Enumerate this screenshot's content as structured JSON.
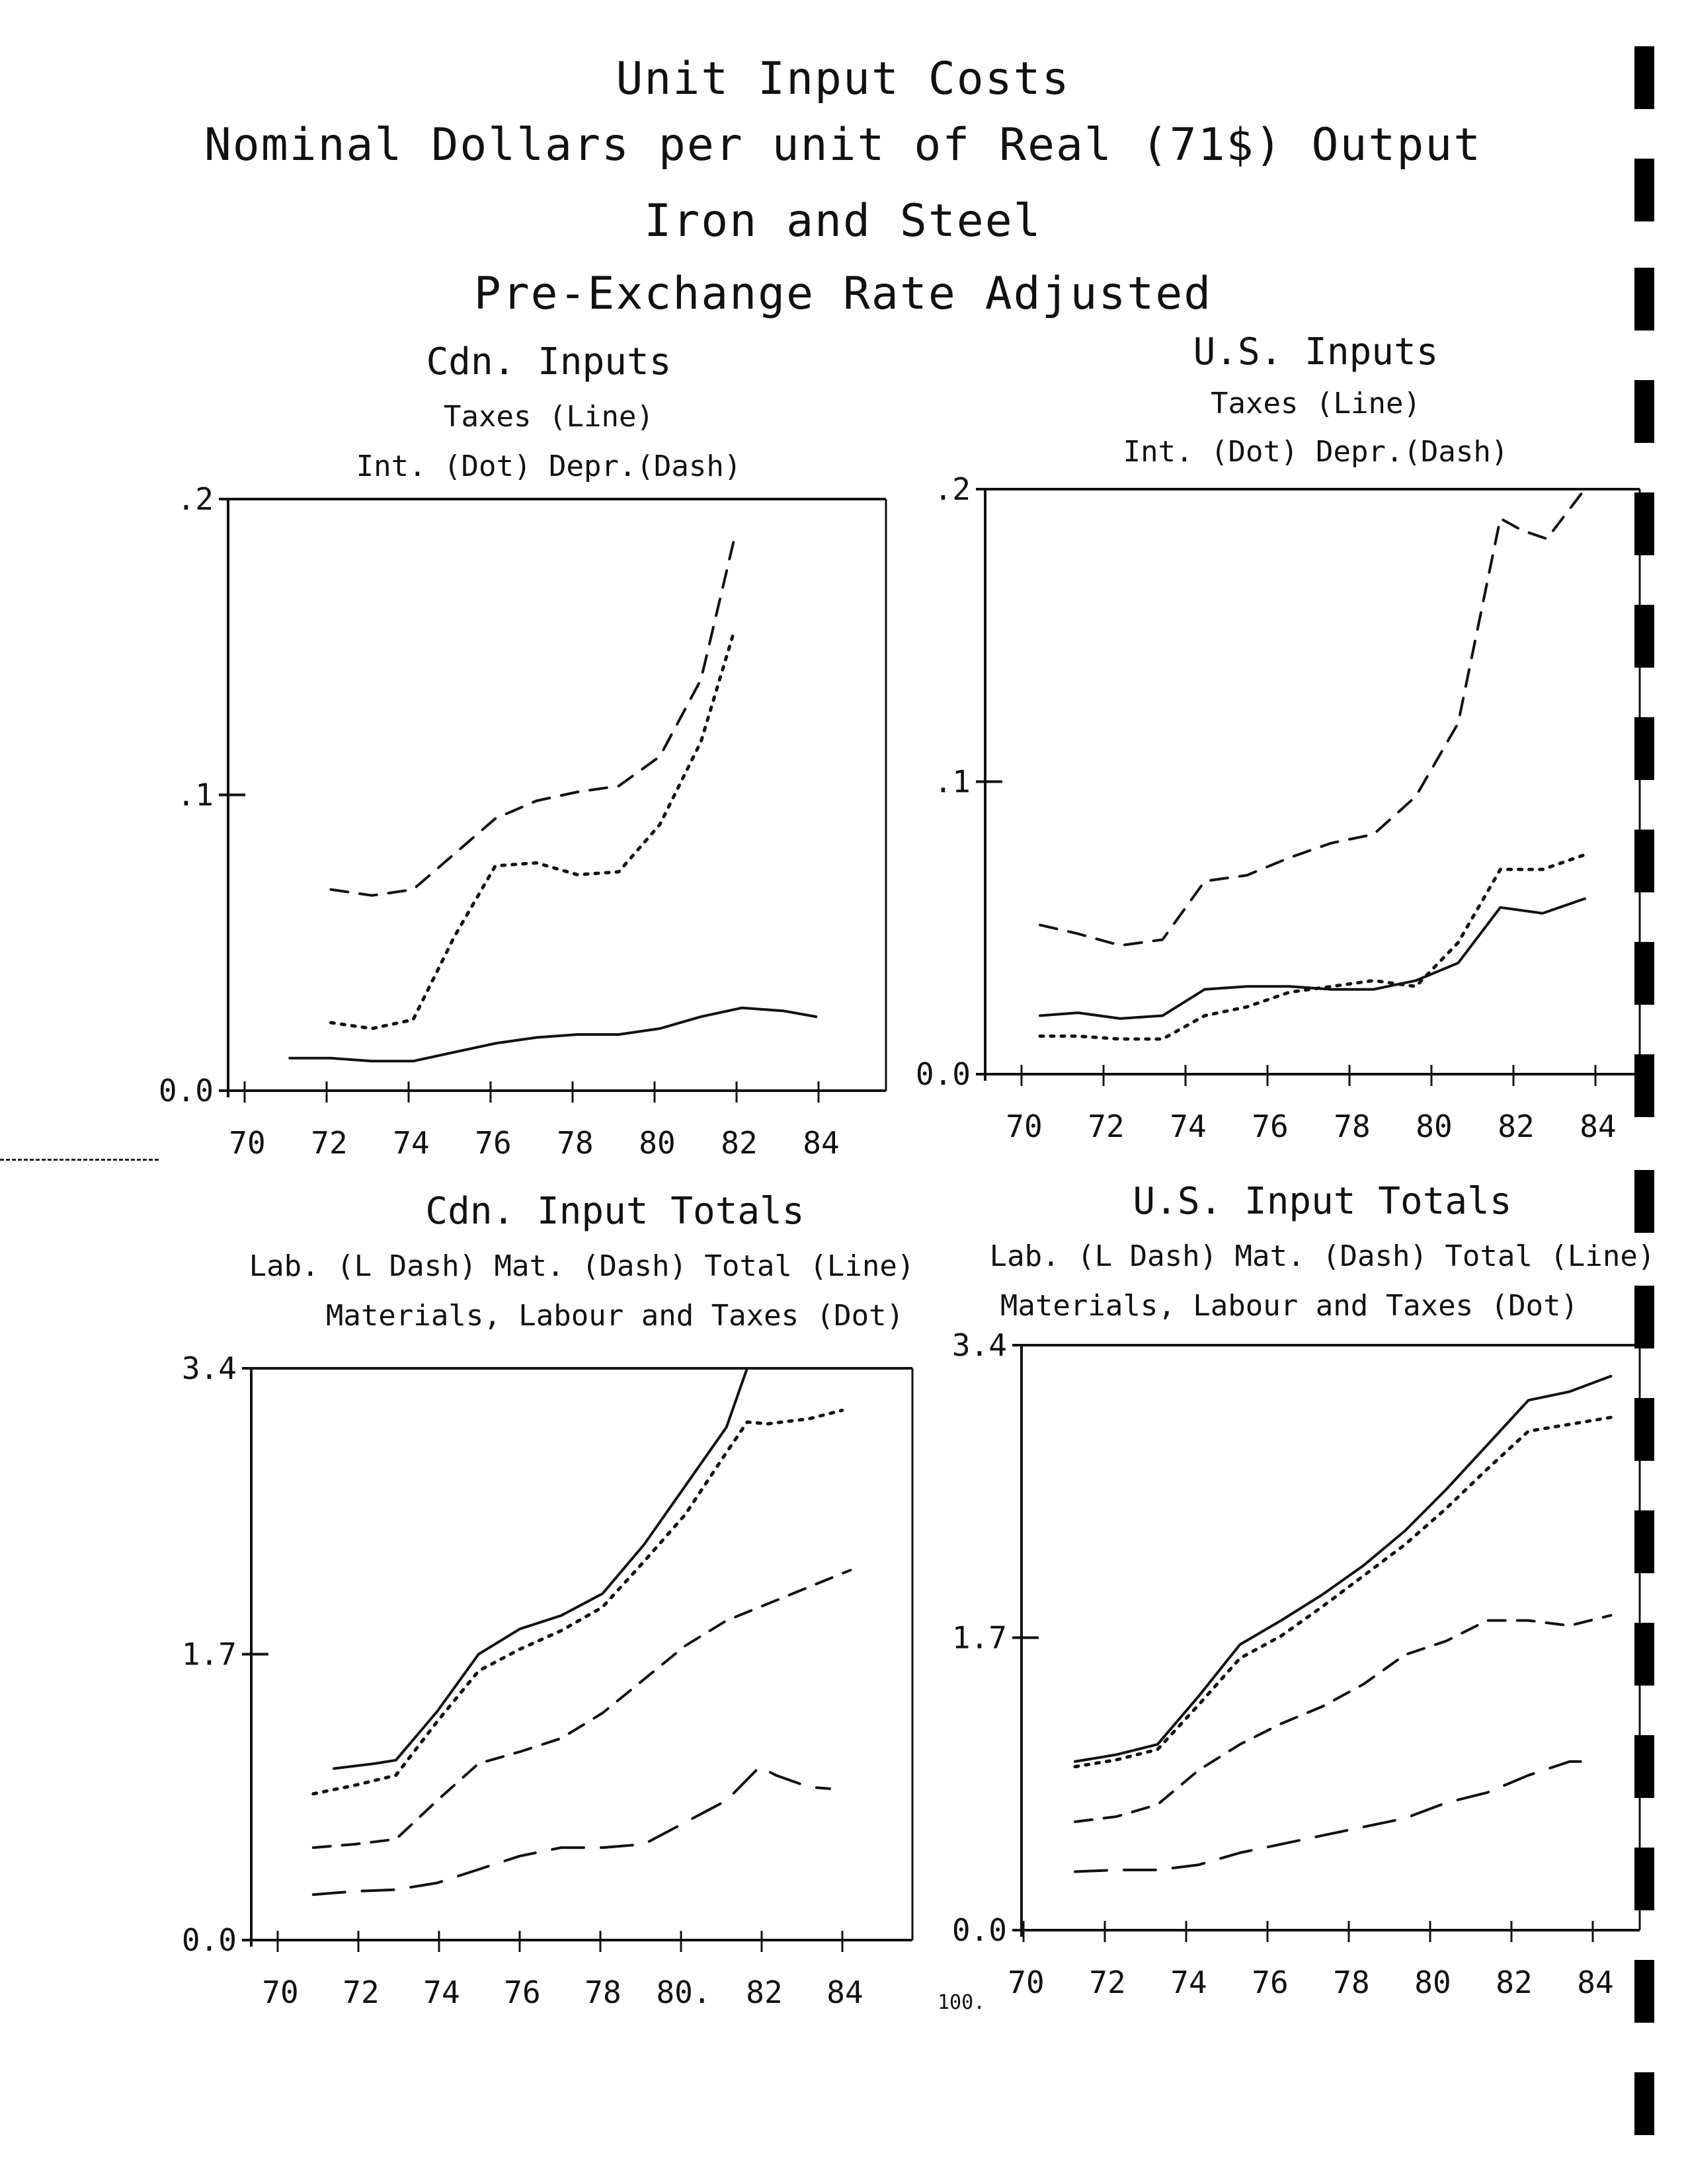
{
  "heading": {
    "line1": "Unit Input Costs",
    "line2": "Nominal Dollars per unit of Real (71$) Output",
    "line3": "Iron and Steel",
    "line4": "Pre-Exchange Rate Adjusted"
  },
  "page_number": "100.",
  "colors": {
    "ink": "#111111",
    "background": "#ffffff"
  },
  "chart_data": [
    {
      "type": "line",
      "title": "Cdn. Inputs",
      "legend_lines": [
        "Taxes (Line)",
        "Int. (Dot)      Depr.(Dash)"
      ],
      "x_ticks": [
        "70",
        "72",
        "74",
        "76",
        "78",
        "80",
        "82",
        "84"
      ],
      "y_ticks": [
        "0.0",
        ".1",
        ".2"
      ],
      "xlim": [
        70,
        86
      ],
      "ylim": [
        0,
        0.2
      ],
      "series": [
        {
          "name": "Taxes",
          "style": "solid",
          "x": [
            71.5,
            72.5,
            73.5,
            74.5,
            75.5,
            76.5,
            77.5,
            78.5,
            79.5,
            80.5,
            81.5,
            82.5,
            83.5,
            84.3
          ],
          "y": [
            0.011,
            0.011,
            0.01,
            0.01,
            0.013,
            0.016,
            0.018,
            0.019,
            0.019,
            0.021,
            0.025,
            0.028,
            0.027,
            0.025
          ]
        },
        {
          "name": "Int.",
          "style": "dot",
          "x": [
            72.5,
            73.5,
            74.5,
            75.5,
            76.5,
            77.5,
            78.5,
            79.5,
            80.5,
            81.5,
            82.3
          ],
          "y": [
            0.023,
            0.021,
            0.024,
            0.052,
            0.076,
            0.077,
            0.073,
            0.074,
            0.09,
            0.118,
            0.155
          ]
        },
        {
          "name": "Depr.",
          "style": "dash",
          "x": [
            72.5,
            73.5,
            74.5,
            75.5,
            76.5,
            77.5,
            78.5,
            79.5,
            80.5,
            81.5,
            82.3
          ],
          "y": [
            0.068,
            0.066,
            0.068,
            0.08,
            0.092,
            0.098,
            0.101,
            0.103,
            0.113,
            0.139,
            0.186
          ]
        }
      ]
    },
    {
      "type": "line",
      "title": "U.S. Inputs",
      "legend_lines": [
        "Taxes (Line)",
        "Int. (Dot)      Depr.(Dash)"
      ],
      "x_ticks": [
        "70",
        "72",
        "74",
        "76",
        "78",
        "80",
        "82",
        "84"
      ],
      "y_ticks": [
        "0.0",
        ".1",
        ".2"
      ],
      "xlim": [
        70,
        85.5
      ],
      "ylim": [
        0,
        0.2
      ],
      "series": [
        {
          "name": "Taxes",
          "style": "solid",
          "x": [
            71.3,
            72.2,
            73.2,
            74.2,
            75.2,
            76.2,
            77.2,
            78.2,
            79.2,
            80.2,
            81.2,
            82.2,
            83.2,
            84.2
          ],
          "y": [
            0.02,
            0.021,
            0.019,
            0.02,
            0.029,
            0.03,
            0.03,
            0.029,
            0.029,
            0.032,
            0.038,
            0.057,
            0.055,
            0.06
          ]
        },
        {
          "name": "Int.",
          "style": "dot",
          "x": [
            71.3,
            72.2,
            73.2,
            74.2,
            75.2,
            76.2,
            77.2,
            78.2,
            79.2,
            80.2,
            81.2,
            82.2,
            83.2,
            84.2
          ],
          "y": [
            0.013,
            0.013,
            0.012,
            0.012,
            0.02,
            0.023,
            0.028,
            0.03,
            0.032,
            0.03,
            0.045,
            0.07,
            0.07,
            0.075
          ]
        },
        {
          "name": "Depr.",
          "style": "dash",
          "x": [
            71.3,
            72.2,
            73.2,
            74.2,
            75.2,
            76.2,
            77.2,
            78.2,
            79.2,
            80.2,
            81.2,
            82.2,
            82.7,
            83.3,
            84.2
          ],
          "y": [
            0.051,
            0.048,
            0.044,
            0.046,
            0.066,
            0.068,
            0.074,
            0.079,
            0.082,
            0.095,
            0.12,
            0.19,
            0.186,
            0.183,
            0.2
          ]
        }
      ]
    },
    {
      "type": "line",
      "title": "Cdn. Input Totals",
      "legend_lines": [
        "Lab. (L Dash)    Mat. (Dash)    Total (Line)",
        "Materials, Labour and Taxes (Dot)"
      ],
      "x_ticks": [
        "70",
        "72",
        "74",
        "76",
        "78",
        "80.",
        "82",
        "84"
      ],
      "y_ticks": [
        "0.0",
        "1.7",
        "3.4"
      ],
      "xlim": [
        70,
        86
      ],
      "ylim": [
        0,
        3.4
      ],
      "series": [
        {
          "name": "Lab.",
          "style": "longdash",
          "x": [
            71.5,
            72.5,
            73.5,
            74.5,
            75.5,
            76.5,
            77.5,
            78.5,
            79.5,
            80.5,
            81.5,
            82.3,
            82.7,
            83.5,
            84.0
          ],
          "y": [
            0.27,
            0.29,
            0.3,
            0.34,
            0.42,
            0.5,
            0.55,
            0.55,
            0.57,
            0.7,
            0.83,
            1.03,
            0.98,
            0.91,
            0.9
          ]
        },
        {
          "name": "Mat.",
          "style": "dash",
          "x": [
            71.5,
            72.5,
            73.5,
            74.5,
            75.5,
            76.5,
            77.5,
            78.5,
            79.5,
            80.5,
            81.5,
            82.5,
            83.5,
            84.5
          ],
          "y": [
            0.55,
            0.57,
            0.6,
            0.83,
            1.05,
            1.12,
            1.2,
            1.35,
            1.55,
            1.75,
            1.9,
            2.0,
            2.1,
            2.2
          ]
        },
        {
          "name": "Total",
          "style": "solid",
          "x": [
            72.0,
            73.0,
            73.5,
            74.5,
            75.5,
            76.5,
            77.5,
            78.5,
            79.5,
            80.5,
            81.5,
            82.0
          ],
          "y": [
            1.02,
            1.05,
            1.07,
            1.36,
            1.7,
            1.85,
            1.93,
            2.06,
            2.35,
            2.7,
            3.05,
            3.4
          ]
        },
        {
          "name": "Materials, Labour and Taxes",
          "style": "dot",
          "x": [
            71.5,
            72.5,
            73.5,
            74.5,
            75.5,
            76.5,
            77.5,
            78.5,
            79.5,
            80.5,
            81.5,
            82.0,
            82.5,
            83.5,
            84.3
          ],
          "y": [
            0.87,
            0.92,
            0.98,
            1.3,
            1.6,
            1.73,
            1.84,
            1.98,
            2.25,
            2.53,
            2.9,
            3.08,
            3.07,
            3.1,
            3.15
          ]
        }
      ]
    },
    {
      "type": "line",
      "title": "U.S. Input Totals",
      "legend_lines": [
        "Lab. (L Dash)    Mat. (Dash)    Total (Line)",
        "Materials, Labour and Taxes (Dot)"
      ],
      "x_ticks": [
        "70",
        "72",
        "74",
        "76",
        "78",
        "80",
        "82",
        "84"
      ],
      "y_ticks": [
        "0.0",
        "1.7",
        "3.4"
      ],
      "xlim": [
        70,
        85
      ],
      "ylim": [
        0,
        3.4
      ],
      "series": [
        {
          "name": "Lab.",
          "style": "longdash",
          "x": [
            71.3,
            72.3,
            73.3,
            74.3,
            75.3,
            76.3,
            77.3,
            78.3,
            79.3,
            80.3,
            81.3,
            82.3,
            83.3,
            83.8
          ],
          "y": [
            0.34,
            0.35,
            0.35,
            0.38,
            0.45,
            0.5,
            0.55,
            0.6,
            0.65,
            0.74,
            0.8,
            0.9,
            0.98,
            0.98
          ]
        },
        {
          "name": "Mat.",
          "style": "dash",
          "x": [
            71.3,
            72.3,
            73.3,
            74.3,
            75.3,
            76.3,
            77.3,
            78.3,
            79.3,
            80.3,
            81.3,
            82.3,
            83.3,
            84.3
          ],
          "y": [
            0.63,
            0.66,
            0.73,
            0.93,
            1.08,
            1.2,
            1.3,
            1.43,
            1.6,
            1.68,
            1.8,
            1.8,
            1.77,
            1.83
          ]
        },
        {
          "name": "Total",
          "style": "solid",
          "x": [
            71.3,
            72.3,
            73.3,
            74.3,
            75.3,
            76.3,
            77.3,
            78.3,
            79.3,
            80.3,
            81.3,
            82.3,
            83.3,
            84.3
          ],
          "y": [
            0.98,
            1.02,
            1.08,
            1.36,
            1.66,
            1.8,
            1.95,
            2.12,
            2.32,
            2.56,
            2.82,
            3.08,
            3.13,
            3.22
          ]
        },
        {
          "name": "Materials, Labour and Taxes",
          "style": "dot",
          "x": [
            71.3,
            72.3,
            73.3,
            74.3,
            75.3,
            76.3,
            77.3,
            78.3,
            79.3,
            80.3,
            81.3,
            82.3,
            83.3,
            84.3
          ],
          "y": [
            0.95,
            0.99,
            1.05,
            1.31,
            1.58,
            1.71,
            1.88,
            2.06,
            2.24,
            2.45,
            2.68,
            2.9,
            2.94,
            2.98
          ]
        }
      ]
    }
  ]
}
